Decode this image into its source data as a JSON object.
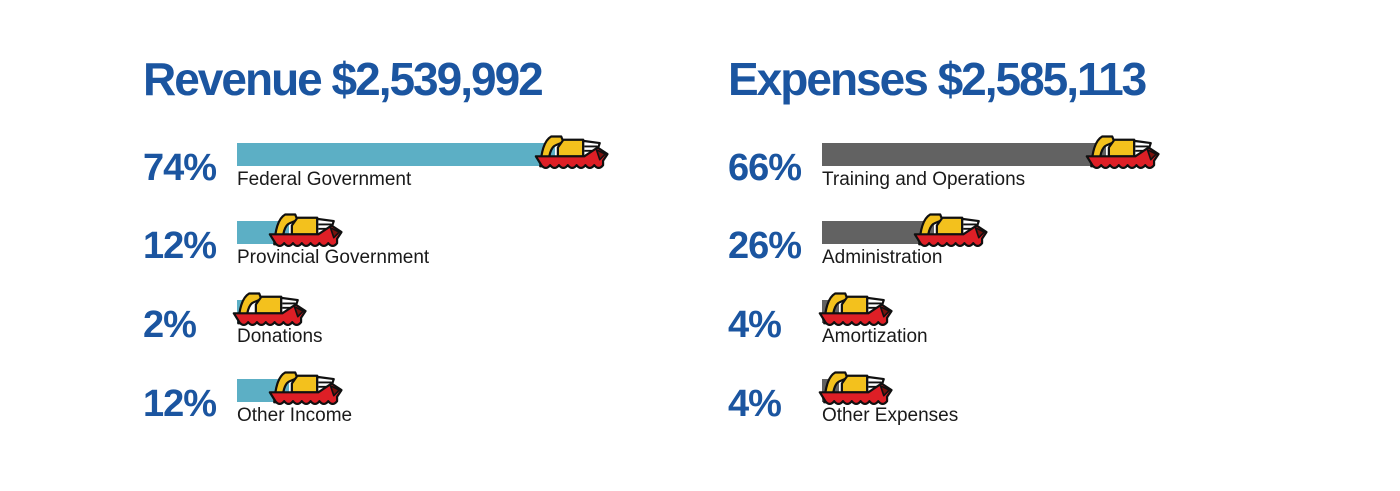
{
  "chart_data": [
    {
      "type": "bar",
      "orientation": "horizontal",
      "title": "Revenue $2,539,992",
      "categories": [
        "Federal Government",
        "Provincial Government",
        "Donations",
        "Other Income"
      ],
      "values": [
        74,
        12,
        2,
        12
      ],
      "value_labels": [
        "74%",
        "12%",
        "2%",
        "12%"
      ],
      "value_unit": "%",
      "bar_color": "#5CAFC5",
      "marker_icon": "tugboat-icon",
      "legend": "none",
      "grid": "off"
    },
    {
      "type": "bar",
      "orientation": "horizontal",
      "title": "Expenses $2,585,113",
      "categories": [
        "Training and Operations",
        "Administration",
        "Amortization",
        "Other Expenses"
      ],
      "values": [
        66,
        26,
        4,
        4
      ],
      "value_labels": [
        "66%",
        "26%",
        "4%",
        "4%"
      ],
      "value_unit": "%",
      "bar_color": "#626262",
      "marker_icon": "tugboat-icon",
      "legend": "none",
      "grid": "off"
    }
  ],
  "colors": {
    "background": "#FFFFFF",
    "heading_blue": "#1B55A0",
    "revenue_bar_teal": "#5CAFC5",
    "expenses_bar_gray": "#626262",
    "category_text": "#1A1A1A",
    "boat_red": "#DE1F26",
    "boat_yellow": "#F3C11D",
    "boat_tip": "#7A120D",
    "boat_bridge_white": "#FFFFFF",
    "boat_outline": "#101010"
  }
}
